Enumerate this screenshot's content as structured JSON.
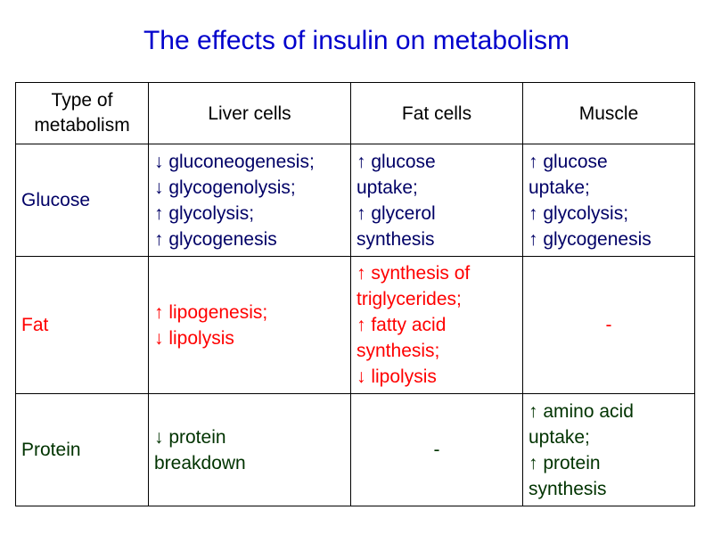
{
  "title": "The effects of insulin on metabolism",
  "colors": {
    "title": "#0000cc",
    "glucose_row": "#000066",
    "fat_row": "#ff0000",
    "protein_row": "#003300"
  },
  "table": {
    "headers": [
      "Type of metabolism",
      "Liver cells",
      "Fat cells",
      "Muscle"
    ],
    "header_lines": {
      "type": [
        "Type of",
        "metabolism"
      ]
    },
    "rows": [
      {
        "label": "Glucose",
        "liver": [
          "↓ gluconeogenesis;",
          "↓ glycogenolysis;",
          "↑ glycolysis;",
          "↑ glycogenesis"
        ],
        "fat": [
          "↑ glucose",
          "uptake;",
          "↑ glycerol",
          "synthesis"
        ],
        "muscle": [
          "↑ glucose",
          "uptake;",
          "↑ glycolysis;",
          "↑ glycogenesis"
        ]
      },
      {
        "label": "Fat",
        "liver": [
          "↑ lipogenesis;",
          "↓ lipolysis"
        ],
        "fat": [
          "↑ synthesis of",
          "triglycerides;",
          "↑ fatty acid",
          "synthesis;",
          "↓ lipolysis"
        ],
        "muscle": "-"
      },
      {
        "label": "Protein",
        "liver": [
          "↓ protein",
          "breakdown"
        ],
        "fat": "-",
        "muscle": [
          "↑ amino acid",
          "uptake;",
          "↑ protein",
          "synthesis"
        ]
      }
    ]
  }
}
